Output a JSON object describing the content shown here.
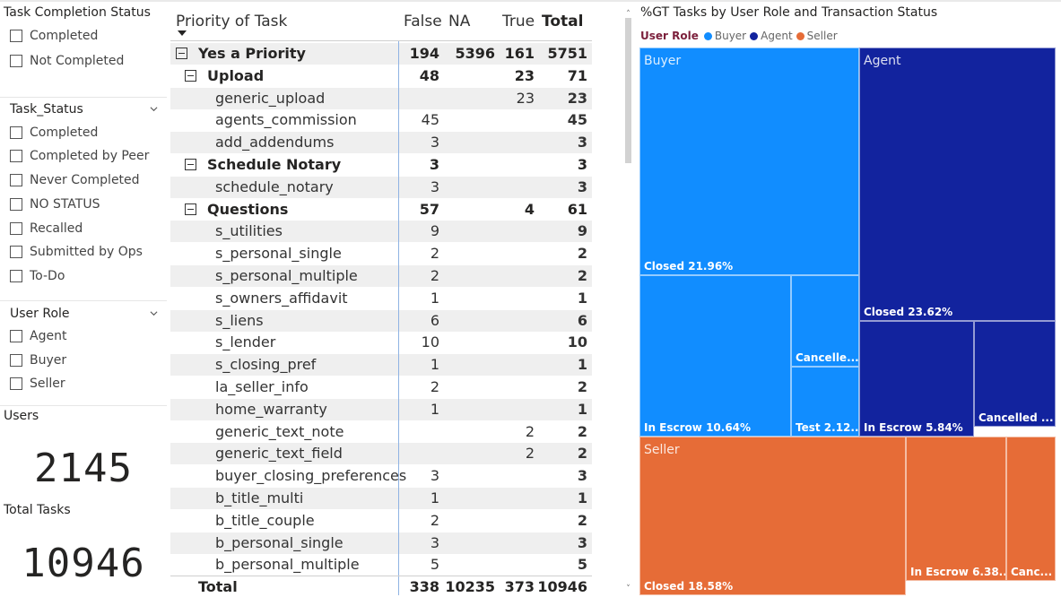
{
  "slicers": {
    "task_completion": {
      "title": "Task Completion Status",
      "items": [
        "Completed",
        "Not Completed"
      ]
    },
    "task_status": {
      "title": "Task_Status",
      "items": [
        "Completed",
        "Completed by Peer",
        "Never Completed",
        "NO STATUS",
        "Recalled",
        "Submitted by Ops",
        "To-Do"
      ]
    },
    "user_role": {
      "title": "User Role",
      "items": [
        "Agent",
        "Buyer",
        "Seller"
      ]
    }
  },
  "cards": {
    "users": {
      "title": "Users",
      "value": "2145"
    },
    "total_tasks": {
      "title": "Total Tasks",
      "value": "10946"
    }
  },
  "matrix": {
    "row_header": "Priority of Task",
    "columns": [
      "False",
      "NA",
      "True",
      "Total"
    ],
    "rows": [
      {
        "level": 1,
        "label": "Yes a Priority",
        "false": "194",
        "na": "5396",
        "true": "161",
        "total": "5751"
      },
      {
        "level": 2,
        "label": "Upload",
        "false": "48",
        "na": "",
        "true": "23",
        "total": "71"
      },
      {
        "level": 3,
        "label": "generic_upload",
        "false": "",
        "na": "",
        "true": "23",
        "total": "23"
      },
      {
        "level": 3,
        "label": "agents_commission",
        "false": "45",
        "na": "",
        "true": "",
        "total": "45"
      },
      {
        "level": 3,
        "label": "add_addendums",
        "false": "3",
        "na": "",
        "true": "",
        "total": "3"
      },
      {
        "level": 2,
        "label": "Schedule Notary",
        "false": "3",
        "na": "",
        "true": "",
        "total": "3"
      },
      {
        "level": 3,
        "label": "schedule_notary",
        "false": "3",
        "na": "",
        "true": "",
        "total": "3"
      },
      {
        "level": 2,
        "label": "Questions",
        "false": "57",
        "na": "",
        "true": "4",
        "total": "61"
      },
      {
        "level": 3,
        "label": "s_utilities",
        "false": "9",
        "na": "",
        "true": "",
        "total": "9"
      },
      {
        "level": 3,
        "label": "s_personal_single",
        "false": "2",
        "na": "",
        "true": "",
        "total": "2"
      },
      {
        "level": 3,
        "label": "s_personal_multiple",
        "false": "2",
        "na": "",
        "true": "",
        "total": "2"
      },
      {
        "level": 3,
        "label": "s_owners_affidavit",
        "false": "1",
        "na": "",
        "true": "",
        "total": "1"
      },
      {
        "level": 3,
        "label": "s_liens",
        "false": "6",
        "na": "",
        "true": "",
        "total": "6"
      },
      {
        "level": 3,
        "label": "s_lender",
        "false": "10",
        "na": "",
        "true": "",
        "total": "10"
      },
      {
        "level": 3,
        "label": "s_closing_pref",
        "false": "1",
        "na": "",
        "true": "",
        "total": "1"
      },
      {
        "level": 3,
        "label": "la_seller_info",
        "false": "2",
        "na": "",
        "true": "",
        "total": "2"
      },
      {
        "level": 3,
        "label": "home_warranty",
        "false": "1",
        "na": "",
        "true": "",
        "total": "1"
      },
      {
        "level": 3,
        "label": "generic_text_note",
        "false": "",
        "na": "",
        "true": "2",
        "total": "2"
      },
      {
        "level": 3,
        "label": "generic_text_field",
        "false": "",
        "na": "",
        "true": "2",
        "total": "2"
      },
      {
        "level": 3,
        "label": "buyer_closing_preferences",
        "false": "3",
        "na": "",
        "true": "",
        "total": "3"
      },
      {
        "level": 3,
        "label": "b_title_multi",
        "false": "1",
        "na": "",
        "true": "",
        "total": "1"
      },
      {
        "level": 3,
        "label": "b_title_couple",
        "false": "2",
        "na": "",
        "true": "",
        "total": "2"
      },
      {
        "level": 3,
        "label": "b_personal_single",
        "false": "3",
        "na": "",
        "true": "",
        "total": "3"
      },
      {
        "level": 3,
        "label": "b_personal_multiple",
        "false": "5",
        "na": "",
        "true": "",
        "total": "5"
      }
    ],
    "total": {
      "label": "Total",
      "false": "338",
      "na": "10235",
      "true": "373",
      "total": "10946"
    }
  },
  "treemap": {
    "title": "%GT Tasks by User Role and Transaction Status",
    "legend_title": "User Role",
    "legend": [
      {
        "name": "Buyer",
        "color": "#118dff"
      },
      {
        "name": "Agent",
        "color": "#12239e"
      },
      {
        "name": "Seller",
        "color": "#e66c37"
      }
    ],
    "groups": [
      {
        "name": "Buyer",
        "color": "#118dff",
        "tiles": [
          {
            "label": "Closed 21.96%"
          },
          {
            "label": "In Escrow 10.64%"
          },
          {
            "label": "Cancelle..."
          },
          {
            "label": "Test 2.12..."
          }
        ]
      },
      {
        "name": "Agent",
        "color": "#12239e",
        "tiles": [
          {
            "label": "Closed 23.62%"
          },
          {
            "label": "In Escrow 5.84%"
          },
          {
            "label": "Cancelled ..."
          }
        ]
      },
      {
        "name": "Seller",
        "color": "#e66c37",
        "tiles": [
          {
            "label": "Closed 18.58%"
          },
          {
            "label": "In Escrow 6.38..."
          },
          {
            "label": "Canc..."
          }
        ]
      }
    ]
  }
}
